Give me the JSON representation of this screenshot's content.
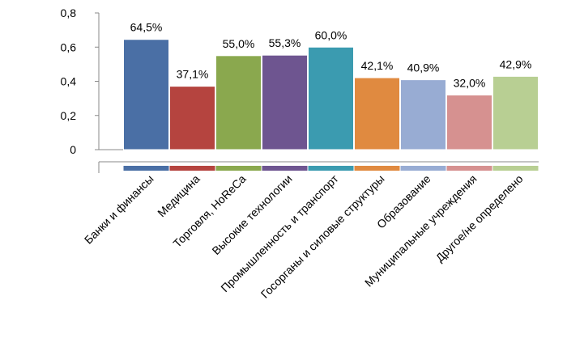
{
  "chart_data": {
    "type": "bar",
    "title": "",
    "xlabel": "",
    "ylabel": "",
    "ylim": [
      0,
      0.8
    ],
    "y_ticks": [
      "0",
      "0,2",
      "0,4",
      "0,6",
      "0,8"
    ],
    "grid": false,
    "legend": "none",
    "categories": [
      "Банки и финансы",
      "Медицина",
      "Торговля, HoReCa",
      "Высокие технологии",
      "Промышленность и транспорт",
      "Госорганы и силовые структуры",
      "Образование",
      "Муниципальные учреждения",
      "Другое/не определено"
    ],
    "values": [
      0.645,
      0.371,
      0.55,
      0.553,
      0.6,
      0.421,
      0.409,
      0.32,
      0.429
    ],
    "data_labels": [
      "64,5%",
      "37,1%",
      "55,0%",
      "55,3%",
      "60,0%",
      "42,1%",
      "40,9%",
      "32,0%",
      "42,9%"
    ],
    "colors": [
      "#4a6fa5",
      "#b5443f",
      "#8aa84e",
      "#6e5590",
      "#3b9bb0",
      "#e08a40",
      "#98acd3",
      "#d69190",
      "#b8cf93"
    ]
  }
}
